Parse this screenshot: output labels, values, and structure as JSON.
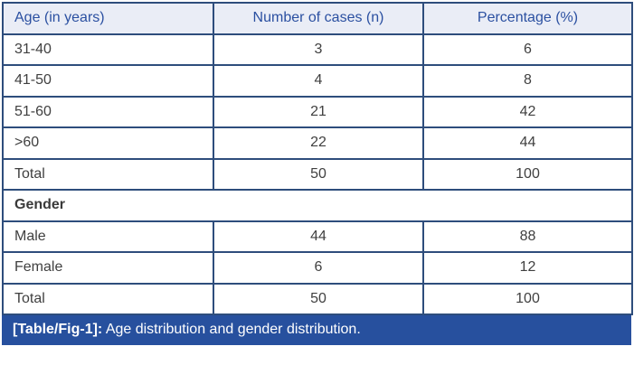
{
  "table": {
    "columns": {
      "age": "Age (in years)",
      "cases": "Number of cases (n)",
      "percentage": "Percentage (%)"
    },
    "age_rows": [
      {
        "label": "31-40",
        "cases": "3",
        "percentage": "6"
      },
      {
        "label": "41-50",
        "cases": "4",
        "percentage": "8"
      },
      {
        "label": "51-60",
        "cases": "21",
        "percentage": "42"
      },
      {
        "label": ">60",
        "cases": "22",
        "percentage": "44"
      },
      {
        "label": "Total",
        "cases": "50",
        "percentage": "100"
      }
    ],
    "section_header": "Gender",
    "gender_rows": [
      {
        "label": "Male",
        "cases": "44",
        "percentage": "88"
      },
      {
        "label": "Female",
        "cases": "6",
        "percentage": "12"
      },
      {
        "label": "Total",
        "cases": "50",
        "percentage": "100"
      }
    ]
  },
  "caption": {
    "label": "[Table/Fig-1]:",
    "text": "Age distribution and gender distribution."
  },
  "colors": {
    "border": "#2e4d7c",
    "header_background": "#eaedf6",
    "header_text": "#2b50a1",
    "body_text": "#404040",
    "caption_background": "#27509e",
    "caption_text": "#ffffff"
  }
}
